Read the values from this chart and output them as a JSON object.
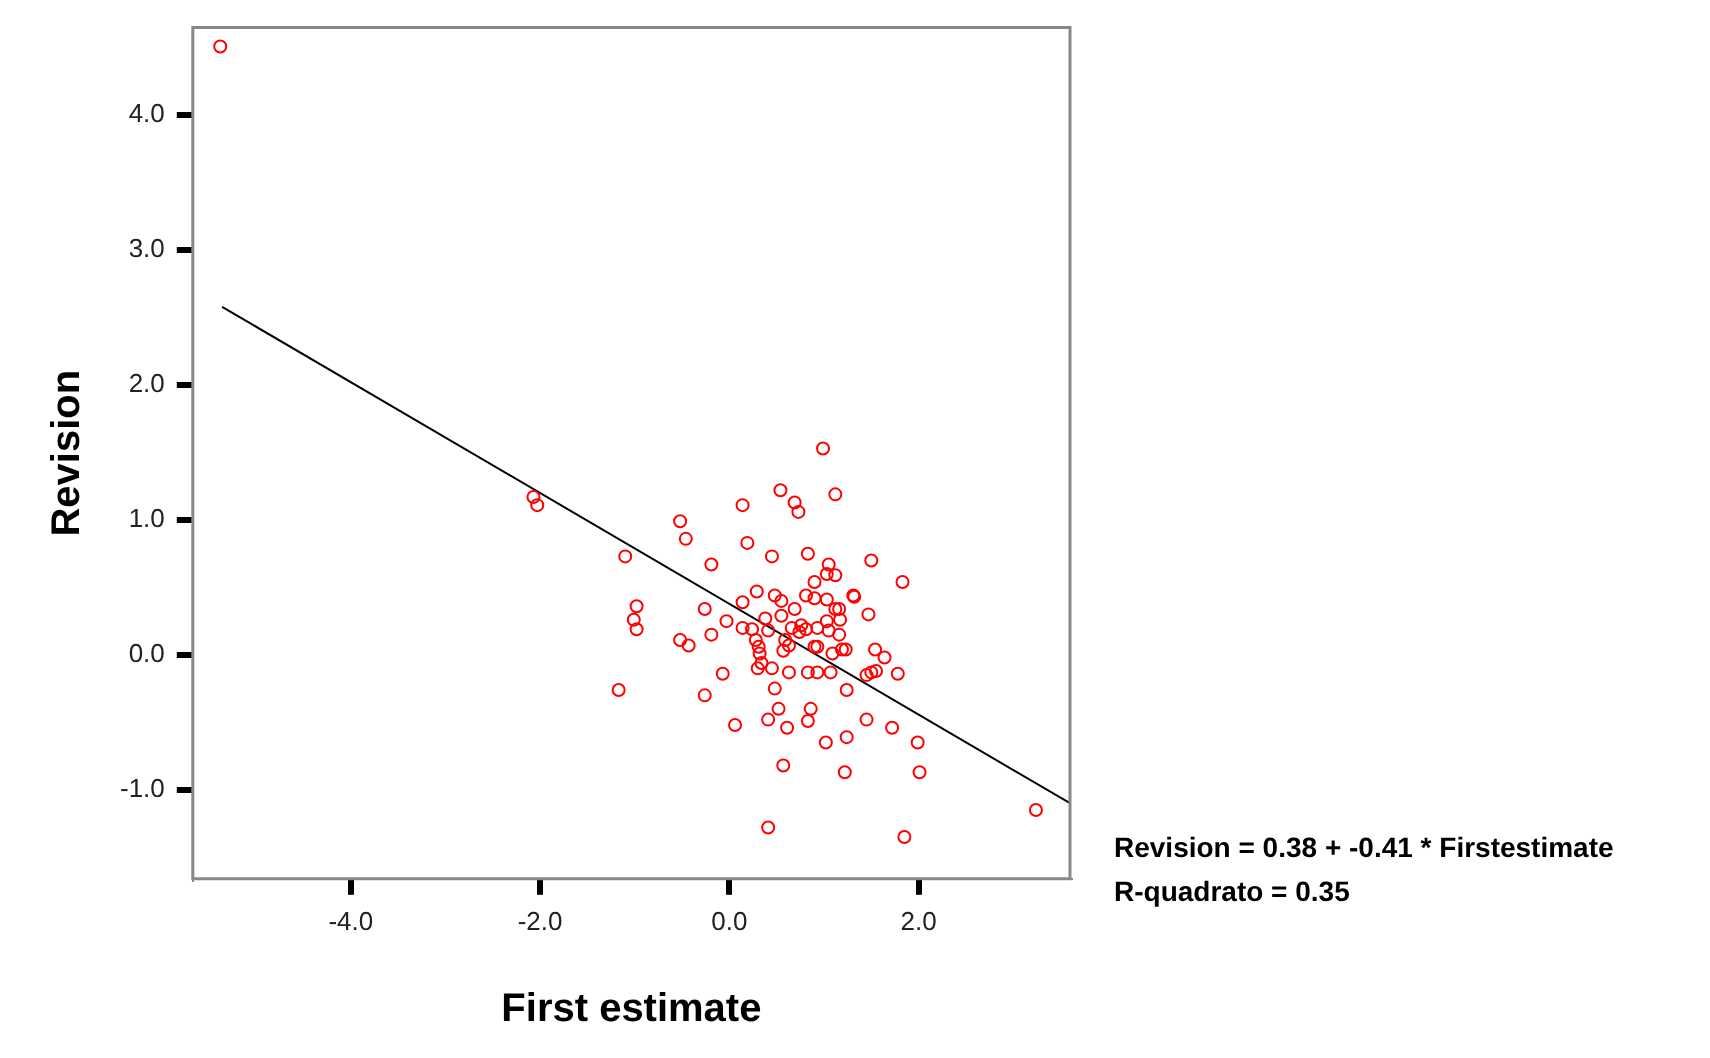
{
  "chart_data": {
    "type": "scatter",
    "xlabel": "First estimate",
    "ylabel": "Revision",
    "xlim": [
      -5.67,
      3.6
    ],
    "ylim": [
      -1.66,
      4.65
    ],
    "xticks": [
      {
        "value": -4,
        "label": "-4.0"
      },
      {
        "value": -2,
        "label": "-2.0"
      },
      {
        "value": 0,
        "label": "0.0"
      },
      {
        "value": 2,
        "label": "2.0"
      }
    ],
    "yticks": [
      {
        "value": -1,
        "label": "-1.0"
      },
      {
        "value": 0,
        "label": "0.0"
      },
      {
        "value": 1,
        "label": "1.0"
      },
      {
        "value": 2,
        "label": "2.0"
      },
      {
        "value": 3,
        "label": "3.0"
      },
      {
        "value": 4,
        "label": "4.0"
      }
    ],
    "grid": false,
    "legend": false,
    "marker": "circle",
    "annotations": [
      "Revision = 0.38 + -0.41 * Firstestimate",
      "R-quadrato = 0.35"
    ],
    "series": [
      {
        "color": "#ff0000",
        "x": [
          -5.38,
          -2.07,
          -2.03,
          0.54,
          1.12,
          0.14,
          0.69,
          0.73,
          -0.52,
          -0.46,
          -1.1,
          0.19,
          0.45,
          0.83,
          -0.19,
          1.5,
          1.05,
          1.03,
          1.12,
          0.9,
          1.83,
          -0.98,
          -1.01,
          -0.98,
          -0.26,
          -0.03,
          0.14,
          0.29,
          0.48,
          0.55,
          0.81,
          0.9,
          1.03,
          1.31,
          1.32,
          1.47,
          1.12,
          1.16,
          0.69,
          0.55,
          0.38,
          0.14,
          0.24,
          0.41,
          0.66,
          0.76,
          0.81,
          0.74,
          0.93,
          1.03,
          1.17,
          1.16,
          1.05,
          -0.52,
          -0.43,
          -0.19,
          0.28,
          0.31,
          0.32,
          0.59,
          0.57,
          0.63,
          0.9,
          0.93,
          1.19,
          1.23,
          1.09,
          1.54,
          1.64,
          0.34,
          0.3,
          0.45,
          0.63,
          0.83,
          0.93,
          1.07,
          1.45,
          1.5,
          1.55,
          1.78,
          -0.07,
          -1.17,
          -0.26,
          0.48,
          1.24,
          0.52,
          0.86,
          0.41,
          0.83,
          1.45,
          0.06,
          0.61,
          1.72,
          1.02,
          1.24,
          1.99,
          0.57,
          1.22,
          2.01,
          3.24,
          0.41,
          1.85,
          0.99
        ],
        "values": [
          4.51,
          1.17,
          1.11,
          1.22,
          1.19,
          1.11,
          1.13,
          1.06,
          0.99,
          0.86,
          0.73,
          0.83,
          0.73,
          0.75,
          0.67,
          0.7,
          0.67,
          0.6,
          0.59,
          0.54,
          0.54,
          0.36,
          0.26,
          0.19,
          0.34,
          0.25,
          0.39,
          0.47,
          0.44,
          0.4,
          0.44,
          0.42,
          0.41,
          0.44,
          0.43,
          0.3,
          0.34,
          0.34,
          0.34,
          0.29,
          0.27,
          0.2,
          0.19,
          0.18,
          0.2,
          0.22,
          0.19,
          0.17,
          0.2,
          0.25,
          0.26,
          0.15,
          0.18,
          0.11,
          0.07,
          0.15,
          0.11,
          0.06,
          0.01,
          0.11,
          0.03,
          0.07,
          0.06,
          0.06,
          0.04,
          0.04,
          0.01,
          0.04,
          -0.02,
          -0.06,
          -0.1,
          -0.1,
          -0.13,
          -0.13,
          -0.13,
          -0.13,
          -0.15,
          -0.13,
          -0.12,
          -0.14,
          -0.14,
          -0.26,
          -0.3,
          -0.25,
          -0.26,
          -0.4,
          -0.4,
          -0.48,
          -0.49,
          -0.48,
          -0.52,
          -0.54,
          -0.54,
          -0.65,
          -0.61,
          -0.65,
          -0.82,
          -0.87,
          -0.87,
          -1.15,
          -1.28,
          -1.35,
          1.53
        ]
      },
      {
        "type": "line",
        "color": "#000000",
        "marker": "none",
        "x": [
          -5.36,
          3.6
        ],
        "values": [
          2.58,
          -1.1
        ]
      }
    ]
  }
}
